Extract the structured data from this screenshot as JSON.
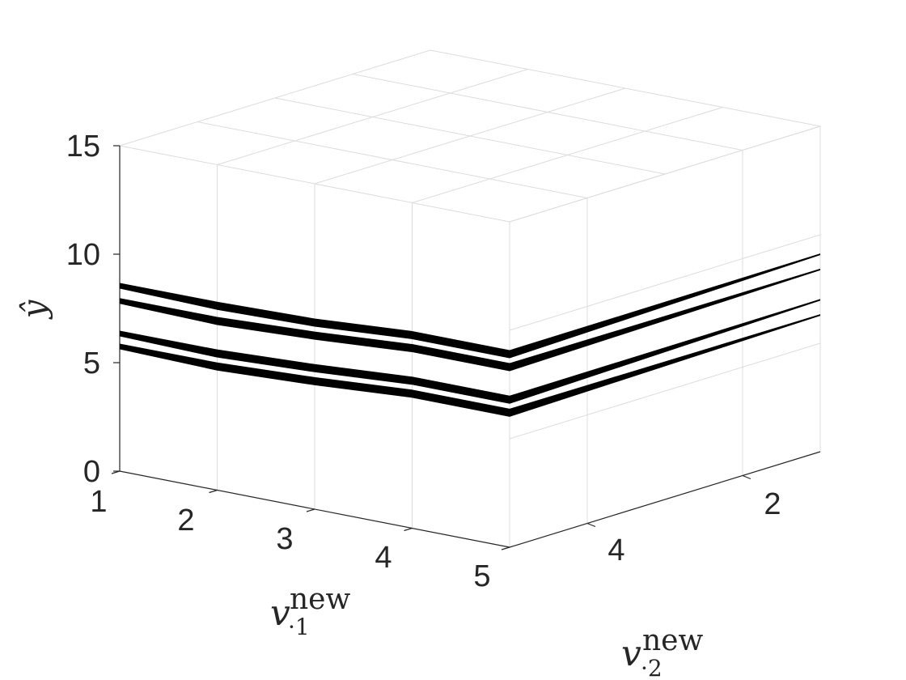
{
  "chart_data": {
    "type": "surface",
    "title": "",
    "axes": {
      "y": {
        "label": "ŷ",
        "ticks": [
          "0",
          "5",
          "10",
          "15"
        ],
        "range": [
          0,
          15
        ]
      },
      "v1": {
        "label": "v",
        "label_sub": "·1",
        "label_sup": "new",
        "ticks": [
          "1",
          "2",
          "3",
          "4",
          "5"
        ],
        "range": [
          1,
          5
        ]
      },
      "v2": {
        "label": "v",
        "label_sub": "·2",
        "label_sup": "new",
        "ticks": [
          "2",
          "4"
        ],
        "range": [
          1,
          5
        ]
      }
    },
    "grid": true,
    "colors": {
      "surface": "#000000",
      "axis": "#262626",
      "grid": "#dcdcdc"
    },
    "series": [
      {
        "near_edge": [
          8.6,
          8.5,
          8.6,
          8.9
        ],
        "far_edge": [
          8.9,
          9.1
        ],
        "far_value_max": 9.1
      },
      {
        "near_edge": [
          7.9,
          7.8,
          8.0,
          8.3
        ],
        "far_edge": [
          8.3,
          8.4
        ],
        "far_value_max": 8.4
      },
      {
        "near_edge": [
          6.4,
          6.3,
          6.5,
          6.8
        ],
        "far_edge": [
          6.8,
          7.0
        ],
        "far_value_max": 7.0
      },
      {
        "near_edge": [
          5.8,
          5.7,
          5.9,
          6.2
        ],
        "far_edge": [
          6.2,
          6.3
        ],
        "far_value_max": 6.3
      }
    ]
  }
}
